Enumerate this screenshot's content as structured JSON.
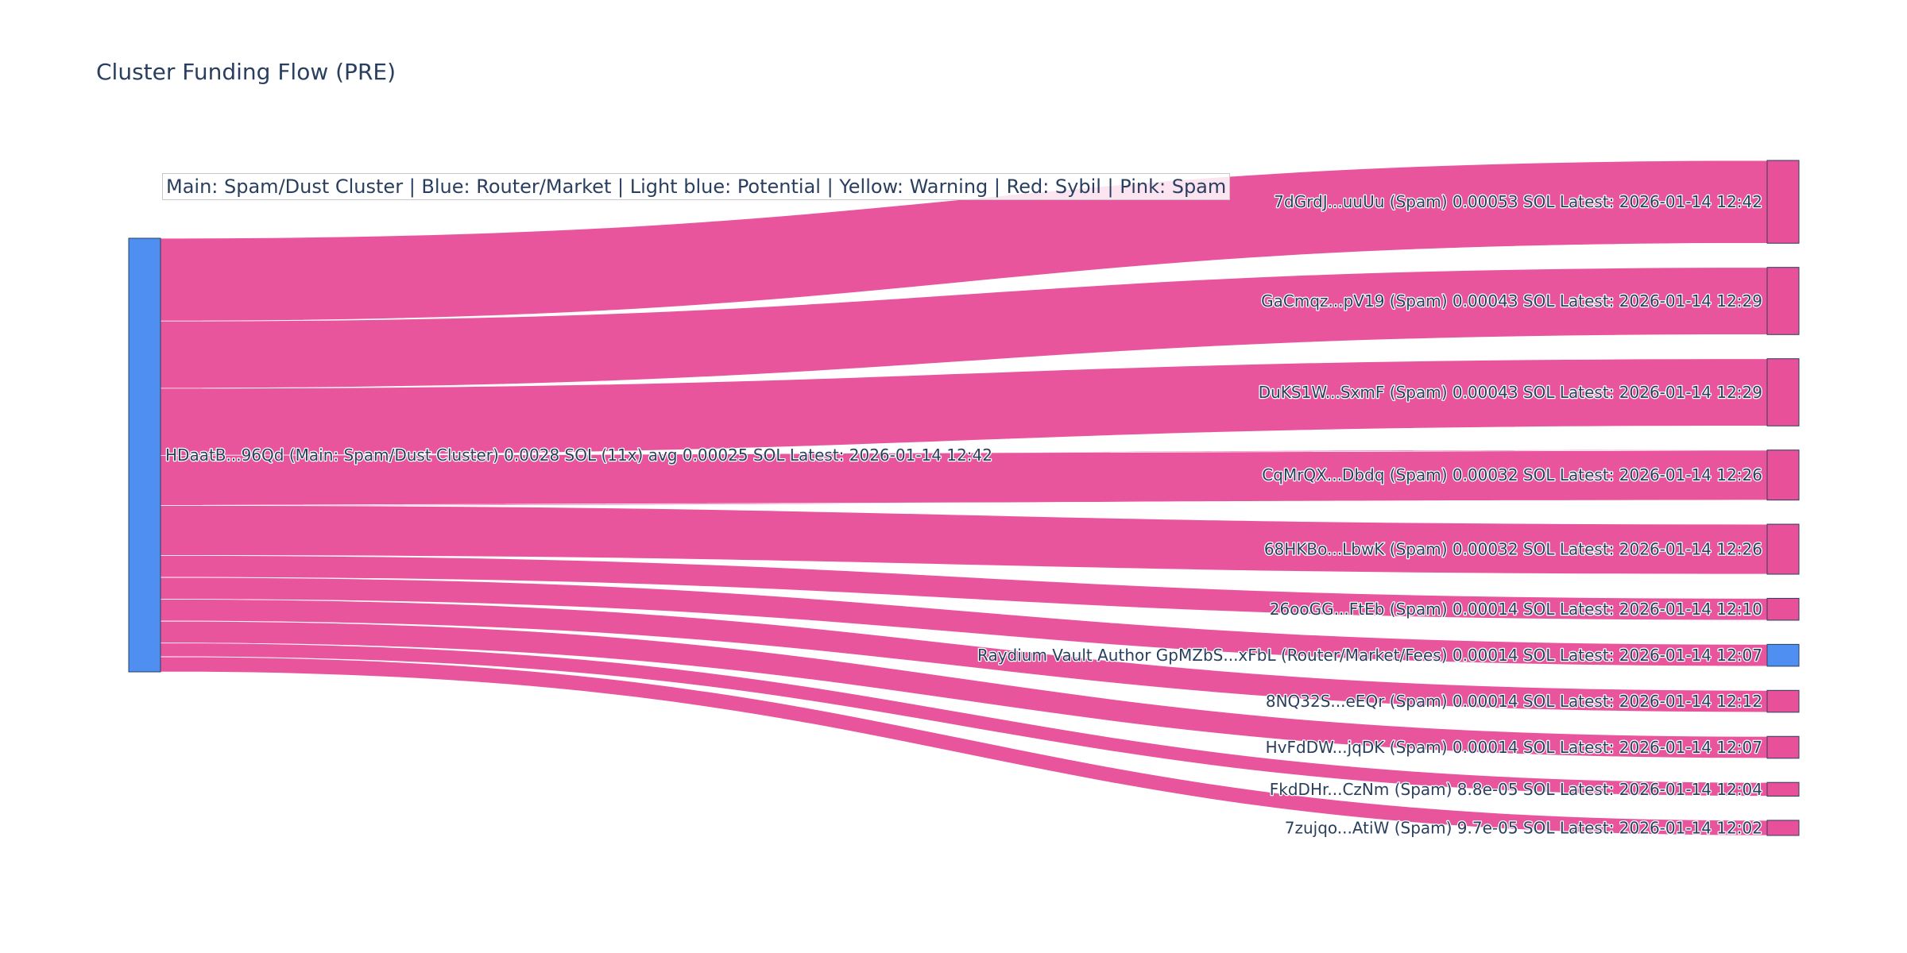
{
  "title": "Cluster Funding Flow (PRE)",
  "legend_note": "Main: Spam/Dust Cluster  |  Blue: Router/Market | Light blue: Potential | Yellow: Warning | Red: Sybil | Pink: Spam",
  "colors": {
    "link": "#e8509a",
    "spam_node": "#e8509a",
    "router_node": "#4f8ff2",
    "source_node": "#4f8ff2",
    "node_border": "#2a3f5f"
  },
  "chart_data": {
    "type": "sankey",
    "source": {
      "label": "HDaatB...96Qd (Main: Spam/Dust Cluster) 0.0028 SOL (11x) avg 0.00025 SOL Latest: 2026-01-14 12:42",
      "category": "main"
    },
    "targets": [
      {
        "label": "7dGrdJ...uuUu (Spam) 0.00053 SOL Latest: 2026-01-14 12:42",
        "value": 0.00053,
        "category": "spam"
      },
      {
        "label": "GaCmqz...pV19 (Spam) 0.00043 SOL Latest: 2026-01-14 12:29",
        "value": 0.00043,
        "category": "spam"
      },
      {
        "label": "DuKS1W...SxmF (Spam) 0.00043 SOL Latest: 2026-01-14 12:29",
        "value": 0.00043,
        "category": "spam"
      },
      {
        "label": "CqMrQX...Dbdq (Spam) 0.00032 SOL Latest: 2026-01-14 12:26",
        "value": 0.00032,
        "category": "spam"
      },
      {
        "label": "68HKBo...LbwK (Spam) 0.00032 SOL Latest: 2026-01-14 12:26",
        "value": 0.00032,
        "category": "spam"
      },
      {
        "label": "26ooGG...FtEb (Spam) 0.00014 SOL Latest: 2026-01-14 12:10",
        "value": 0.00014,
        "category": "spam"
      },
      {
        "label": "Raydium Vault Author GpMZbS...xFbL (Router/Market/Fees) 0.00014 SOL Latest: 2026-01-14 12:07",
        "value": 0.00014,
        "category": "router"
      },
      {
        "label": "8NQ32S...eEQr (Spam) 0.00014 SOL Latest: 2026-01-14 12:12",
        "value": 0.00014,
        "category": "spam"
      },
      {
        "label": "HvFdDW...jqDK (Spam) 0.00014 SOL Latest: 2026-01-14 12:07",
        "value": 0.00014,
        "category": "spam"
      },
      {
        "label": "FkdDHr...CzNm (Spam) 8.8e-05 SOL Latest: 2026-01-14 12:04",
        "value": 8.8e-05,
        "category": "spam"
      },
      {
        "label": "7zujqo...AtiW (Spam) 9.7e-05 SOL Latest: 2026-01-14 12:02",
        "value": 9.7e-05,
        "category": "spam"
      }
    ]
  }
}
